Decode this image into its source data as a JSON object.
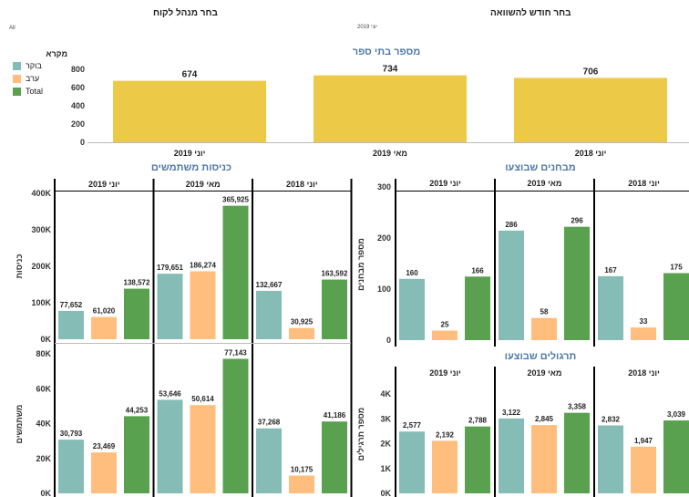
{
  "header": {
    "left_select_label": "בחר מנהל לקוח",
    "left_select_value": "All",
    "right_select_label": "בחר חודש להשוואה",
    "right_select_value": "יוני 2019"
  },
  "legend": {
    "title": "מקרא",
    "items": [
      {
        "label": "בוקר",
        "color": "#86bcb6"
      },
      {
        "label": "ערב",
        "color": "#ffbe7d"
      },
      {
        "label": "Total",
        "color": "#59a14f"
      }
    ]
  },
  "colors": {
    "morning": "#86bcb6",
    "evening": "#ffbe7d",
    "total": "#59a14f",
    "schools": "#edc948",
    "title": "#4e79a7"
  },
  "chart_data": [
    {
      "id": "schools",
      "type": "bar",
      "title": "מספר בתי ספר",
      "categories": [
        "יוני 2019",
        "מאי 2019",
        "יוני 2018"
      ],
      "values": [
        674,
        734,
        706
      ],
      "labels": [
        "674",
        "734",
        "706"
      ],
      "yticks": [
        "0",
        "200",
        "400",
        "600",
        "800"
      ],
      "ylim": [
        0,
        800
      ]
    },
    {
      "id": "logins",
      "type": "bar",
      "title": "כניסות משתמשים",
      "panels": [
        "יוני 2019",
        "מאי 2019",
        "יוני 2018"
      ],
      "rows": [
        {
          "ylabel": "כניסות",
          "yticks": [
            "0K",
            "100K",
            "200K",
            "300K",
            "400K"
          ],
          "ylim": [
            0,
            400000
          ],
          "series": [
            {
              "values": [
                77652,
                61020,
                138572
              ],
              "labels": [
                "77,652",
                "61,020",
                "138,572"
              ]
            },
            {
              "values": [
                179651,
                186274,
                365925
              ],
              "labels": [
                "179,651",
                "186,274",
                "365,925"
              ]
            },
            {
              "values": [
                132667,
                30925,
                163592
              ],
              "labels": [
                "132,667",
                "30,925",
                "163,592"
              ]
            }
          ]
        },
        {
          "ylabel": "משתמשים",
          "yticks": [
            "0K",
            "20K",
            "40K",
            "60K",
            "80K"
          ],
          "ylim": [
            0,
            80000
          ],
          "series": [
            {
              "values": [
                30793,
                23469,
                44253
              ],
              "labels": [
                "30,793",
                "23,469",
                "44,253"
              ]
            },
            {
              "values": [
                53646,
                50614,
                77143
              ],
              "labels": [
                "53,646",
                "50,614",
                "77,143"
              ]
            },
            {
              "values": [
                37268,
                10175,
                41186
              ],
              "labels": [
                "37,268",
                "10,175",
                "41,186"
              ]
            }
          ]
        }
      ]
    },
    {
      "id": "tests",
      "type": "bar",
      "title": "מבחנים שבוצעו",
      "panels": [
        "יוני 2019",
        "מאי 2019",
        "יוני 2018"
      ],
      "ylabel": "מספר מבחנים",
      "yticks": [
        "0",
        "100",
        "200",
        "300"
      ],
      "ylim": [
        0,
        400
      ],
      "series": [
        {
          "values": [
            160,
            25,
            166
          ],
          "labels": [
            "160",
            "25",
            "166"
          ]
        },
        {
          "values": [
            286,
            58,
            296
          ],
          "labels": [
            "286",
            "58",
            "296"
          ]
        },
        {
          "values": [
            167,
            33,
            175
          ],
          "labels": [
            "167",
            "33",
            "175"
          ]
        }
      ]
    },
    {
      "id": "exercises",
      "type": "bar",
      "title": "תרגולים שבוצעו",
      "panels": [
        "יוני 2019",
        "מאי 2019",
        "יוני 2018"
      ],
      "ylabel": "מספר תרגילים",
      "yticks": [
        "0K",
        "1K",
        "2K",
        "3K",
        "4K"
      ],
      "ylim": [
        0,
        4600
      ],
      "series": [
        {
          "values": [
            2577,
            2192,
            2788
          ],
          "labels": [
            "2,577",
            "2,192",
            "2,788"
          ]
        },
        {
          "values": [
            3122,
            2845,
            3358
          ],
          "labels": [
            "3,122",
            "2,845",
            "3,358"
          ]
        },
        {
          "values": [
            2832,
            1947,
            3039
          ],
          "labels": [
            "2,832",
            "1,947",
            "3,039"
          ]
        }
      ]
    }
  ]
}
